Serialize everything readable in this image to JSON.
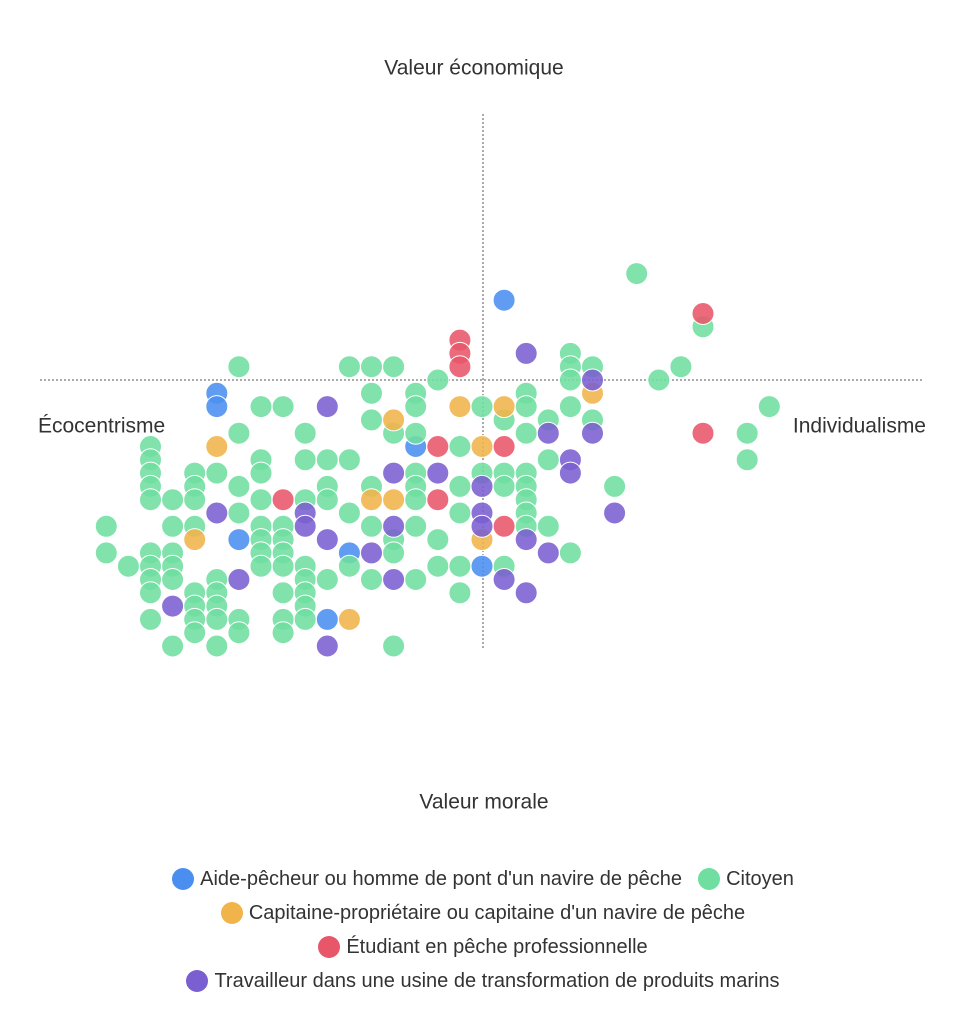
{
  "chart_data": {
    "type": "scatter",
    "title": "Valeur économique",
    "x_label": "Valeur morale",
    "left_label": "Écocentrisme",
    "right_label": "Individualisme",
    "xlim": [
      -10,
      10
    ],
    "ylim": [
      -10,
      10
    ],
    "series": [
      {
        "name": "Aide-pêcheur ou homme de pont d'un navire de pêche",
        "color": "#4a8ff0",
        "x": [
          0.5,
          -6,
          -6,
          -1.5,
          -3,
          -5.5,
          -3.5,
          0
        ],
        "values": [
          3,
          -0.5,
          -1,
          -2.5,
          -6.5,
          -6,
          -9,
          -7
        ]
      },
      {
        "name": "Citoyen",
        "color": "#6fdea0",
        "x": [
          3.5,
          5,
          4.5,
          4,
          6.5,
          6,
          6,
          -5.5,
          -3,
          -2.5,
          -2,
          -1,
          2,
          2,
          2.5,
          2,
          -5,
          -4.5,
          -2.5,
          -1.5,
          -1.5,
          -2.5,
          0,
          1,
          1,
          0.5,
          1.5,
          2,
          2.5,
          -7.5,
          -7.5,
          -7.5,
          -7.5,
          -7.5,
          -5.5,
          -4,
          -2,
          -1.5,
          -0.5,
          1,
          -5,
          -4,
          -3.5,
          -3,
          1.5,
          -6.5,
          -6,
          -5,
          -1.5,
          -1.5,
          0,
          0.5,
          1,
          -0.5,
          0.5,
          1,
          1,
          3,
          -7,
          -6.5,
          -6.5,
          -5.5,
          -5,
          -4,
          -3.5,
          -3.5,
          -2.5,
          -1.5,
          -0.5,
          -8.5,
          -8.5,
          -8,
          -7.5,
          -7.5,
          -7.5,
          -7.5,
          -7.5,
          -7,
          -7,
          -7,
          -7,
          -7,
          -6.5,
          -6.5,
          -6.5,
          -6.5,
          -6,
          -6,
          -6,
          -6,
          -6,
          -5.5,
          -5.5,
          -5,
          -5,
          -5,
          -5,
          -4.5,
          -4.5,
          -4.5,
          -4.5,
          -4.5,
          -4.5,
          -4.5,
          -4,
          -4,
          -4,
          -4,
          -4,
          -3.5,
          -3,
          -2.5,
          -1.5,
          -1,
          -1,
          -0.5,
          -0.5,
          0.5,
          1,
          1,
          1.5,
          2,
          -2,
          -2,
          -2,
          -1.5,
          -2.5,
          -3,
          -5.5,
          -6.5
        ],
        "values": [
          4,
          2,
          0.5,
          0,
          -1,
          -2,
          -3,
          0.5,
          0.5,
          0.5,
          0.5,
          0,
          1,
          0.5,
          0.5,
          0,
          -1,
          -1,
          -0.5,
          -0.5,
          -1,
          -1.5,
          -1,
          -0.5,
          -1,
          -1.5,
          -1.5,
          -1,
          -1.5,
          -2.5,
          -3,
          -3.5,
          -4,
          -4.5,
          -2,
          -2,
          -2,
          -2,
          -2.5,
          -2,
          -3,
          -3,
          -3,
          -3,
          -3,
          -3.5,
          -3.5,
          -3.5,
          -3.5,
          -4,
          -3.5,
          -3.5,
          -3.5,
          -4,
          -4,
          -4,
          -4.5,
          -4,
          -4.5,
          -4,
          -4.5,
          -4,
          -4.5,
          -4.5,
          -4,
          -4.5,
          -4,
          -4.5,
          -5,
          -5.5,
          -6.5,
          -7,
          -6.5,
          -7,
          -7.5,
          -8,
          -9,
          -5.5,
          -6.5,
          -7,
          -7.5,
          -10,
          -8,
          -8.5,
          -9,
          -9.5,
          -7.5,
          -8,
          -8.5,
          -9,
          -10,
          -9,
          -9.5,
          -5.5,
          -6,
          -6.5,
          -7,
          -5.5,
          -6,
          -6.5,
          -7,
          -8,
          -9,
          -9.5,
          -7,
          -7.5,
          -8,
          -8.5,
          -9,
          -7.5,
          -7,
          -7.5,
          -7.5,
          -6,
          -7,
          -7,
          -8,
          -7,
          -5,
          -5.5,
          -5.5,
          -6.5,
          -10,
          -6,
          -6.5,
          -5.5,
          -5.5,
          -5,
          -5,
          -5.5
        ]
      },
      {
        "name": "Capitaine-propriétaire ou capitaine d'un navire de pêche",
        "color": "#f0b44a",
        "x": [
          -2,
          -0.5,
          0.5,
          2.5,
          -6,
          0,
          -2.5,
          -2,
          -6.5,
          0,
          -3
        ],
        "values": [
          -1.5,
          -1,
          -1,
          -0.5,
          -2.5,
          -2.5,
          -4.5,
          -4.5,
          -6,
          -6,
          -9
        ]
      },
      {
        "name": "Étudiant en pêche professionnelle",
        "color": "#e8566a",
        "x": [
          -0.5,
          -0.5,
          -0.5,
          5,
          5,
          -1,
          0.5,
          -4.5,
          -1,
          0.5
        ],
        "values": [
          1.5,
          1,
          0.5,
          2.5,
          -2,
          -2.5,
          -2.5,
          -4.5,
          -4.5,
          -5.5
        ]
      },
      {
        "name": "Travailleur dans une usine de transformation de produits marins",
        "color": "#7a5fd0",
        "x": [
          1,
          2.5,
          -3.5,
          1.5,
          2.5,
          2,
          2,
          -1,
          -2,
          0,
          3,
          -6,
          -4,
          -4,
          0,
          0,
          -2,
          -3.5,
          1,
          -2.5,
          1.5,
          -5.5,
          -2,
          0.5,
          1,
          -7,
          -3.5
        ],
        "values": [
          1,
          0,
          -1,
          -2,
          -2,
          -3,
          -3.5,
          -3.5,
          -3.5,
          -4,
          -5,
          -5,
          -5,
          -5.5,
          -5,
          -5.5,
          -5.5,
          -6,
          -6,
          -6.5,
          -6.5,
          -7.5,
          -7.5,
          -7.5,
          -8,
          -8.5,
          -10
        ]
      }
    ]
  }
}
